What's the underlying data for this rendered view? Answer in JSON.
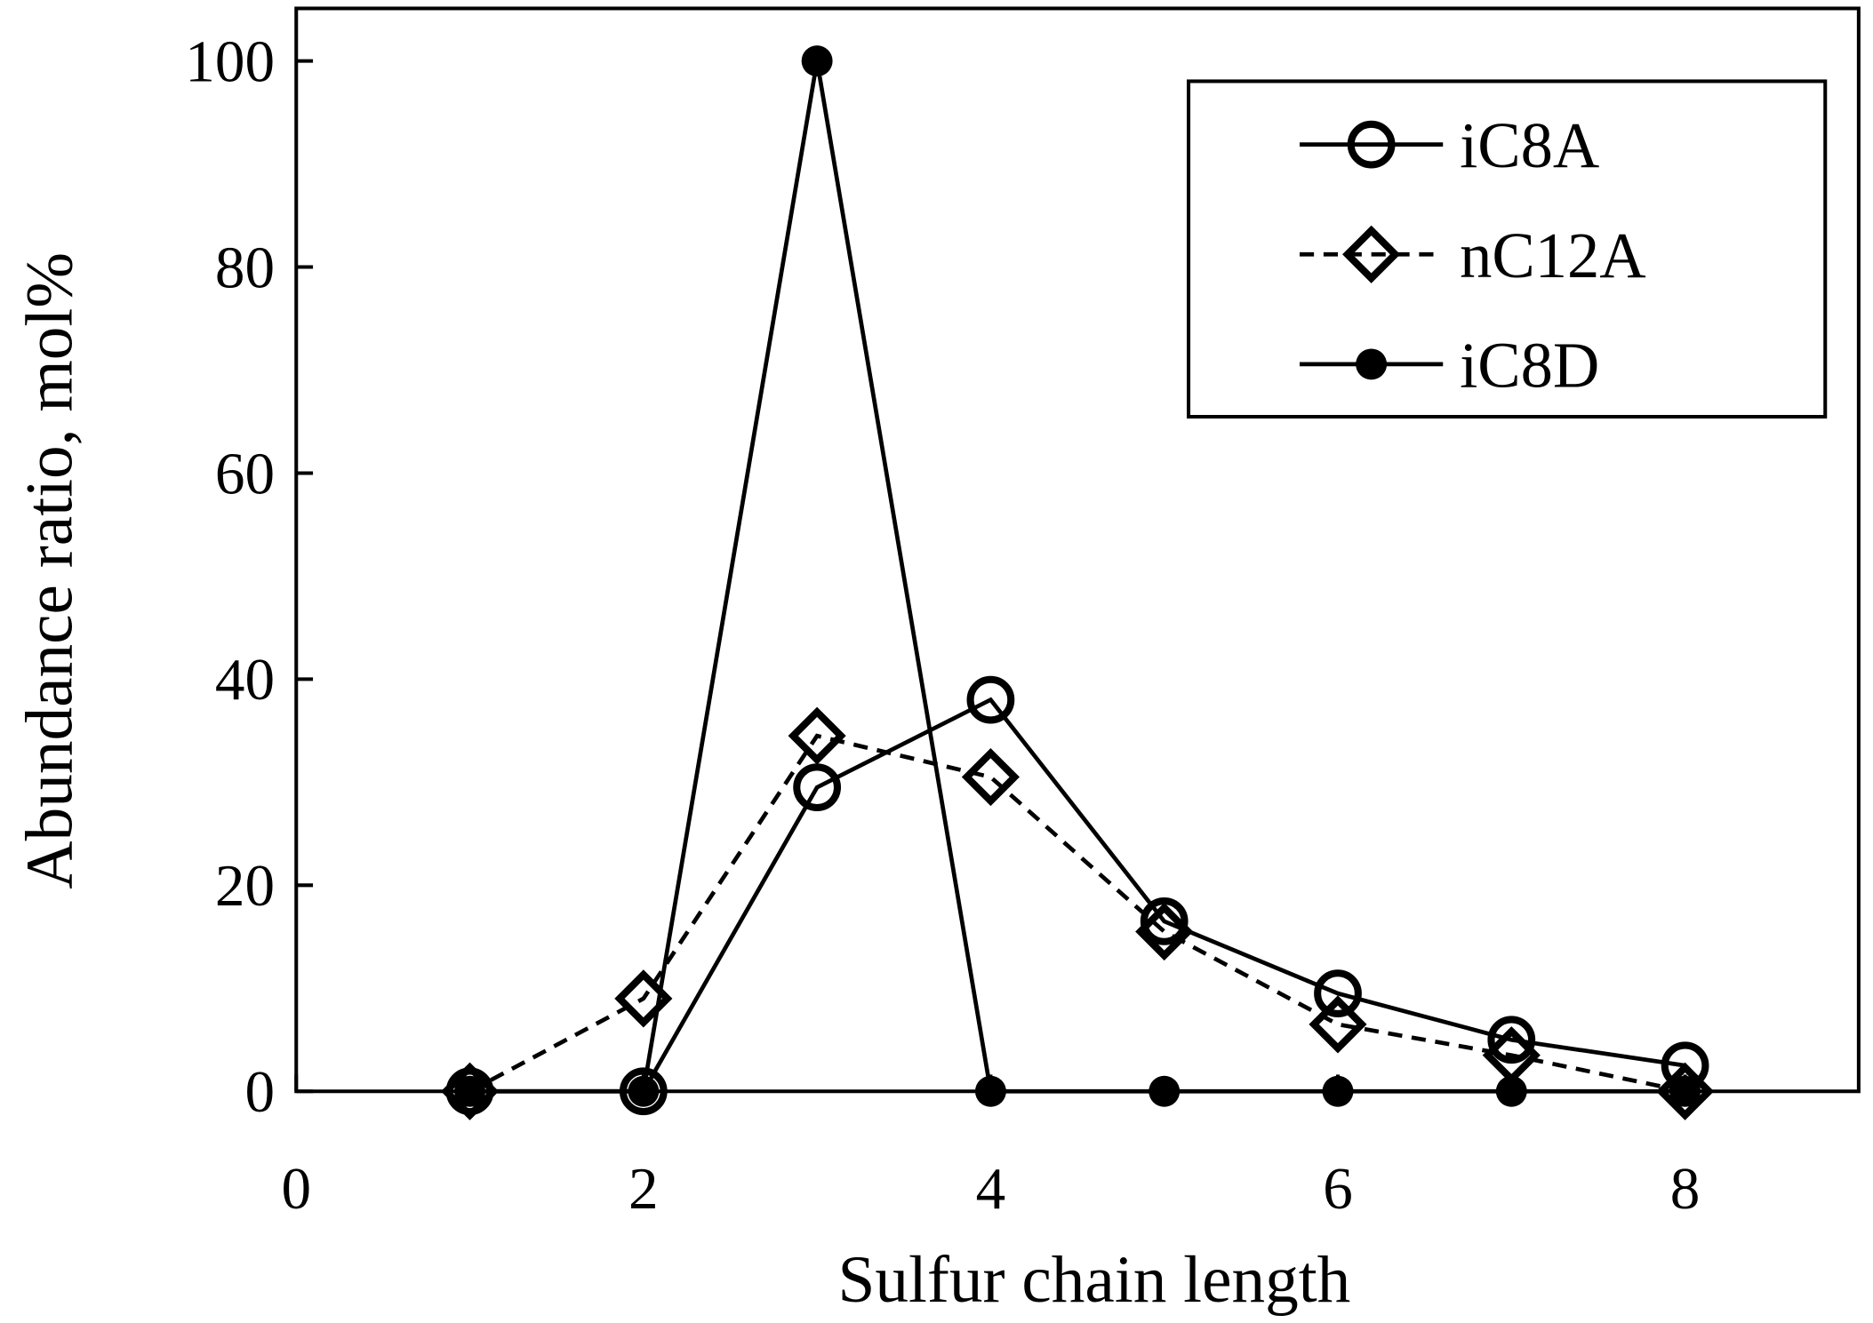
{
  "chart_data": {
    "type": "line",
    "xlabel": "Sulfur chain length",
    "ylabel": "Abundance ratio, mol%",
    "xlim": [
      0,
      9
    ],
    "ylim": [
      0,
      100
    ],
    "xticks": [
      0,
      2,
      4,
      6,
      8
    ],
    "yticks": [
      0,
      20,
      40,
      60,
      80,
      100
    ],
    "grid": false,
    "legend_position": "top-right",
    "series": [
      {
        "name": "iC8A",
        "marker": "open-circle",
        "line": "solid",
        "x": [
          1,
          2,
          3,
          4,
          5,
          6,
          7,
          8
        ],
        "values": [
          0,
          0,
          29.5,
          38,
          16.5,
          9.5,
          5,
          2.5
        ]
      },
      {
        "name": "nC12A",
        "marker": "open-diamond",
        "line": "dashed",
        "x": [
          1,
          2,
          3,
          4,
          5,
          6,
          7,
          8
        ],
        "values": [
          0,
          9,
          34.5,
          30.5,
          15.5,
          6.5,
          3.5,
          0
        ]
      },
      {
        "name": "iC8D",
        "marker": "filled-circle",
        "line": "solid",
        "x": [
          1,
          2,
          3,
          4,
          5,
          6,
          7,
          8
        ],
        "values": [
          0,
          0,
          100,
          0,
          0,
          0,
          0,
          0
        ]
      }
    ]
  }
}
